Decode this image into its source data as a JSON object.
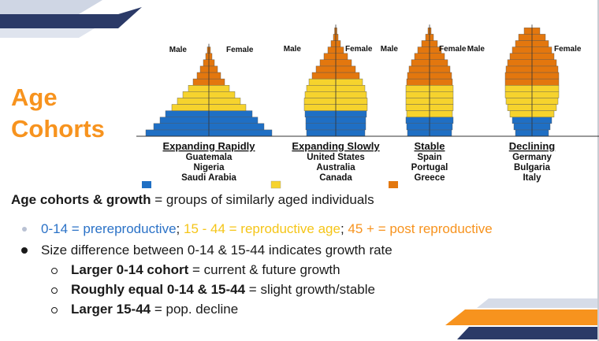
{
  "colors": {
    "prereproductive": "#1f6fc4",
    "reproductive": "#f6d32d",
    "postreproductive": "#e3770e",
    "title": "#f7931e",
    "navy": "#2b3a67"
  },
  "slide": {
    "title_line1": "Age",
    "title_line2": "Cohorts"
  },
  "pyramids": [
    {
      "male_label": "Male",
      "female_label": "Female",
      "heading": "Expanding Rapidly",
      "countries": [
        "Guatemala",
        "Nigeria",
        "Saudi Arabia"
      ]
    },
    {
      "male_label": "Male",
      "female_label": "Female",
      "heading": "Expanding Slowly",
      "countries": [
        "United States",
        "Australia",
        "Canada"
      ]
    },
    {
      "male_label": "Male",
      "female_label": "Female",
      "heading": "Stable",
      "countries": [
        "Spain",
        "Portugal",
        "Greece"
      ]
    },
    {
      "male_label": "Male",
      "female_label": "Female",
      "heading": "Declining",
      "countries": [
        "Germany",
        "Bulgaria",
        "Italy"
      ]
    }
  ],
  "definition": {
    "term": "Age cohorts & growth",
    "rest": " = groups of similarly aged individuals"
  },
  "bullets": {
    "b1_part1": "0-14 = prereproductive",
    "b1_sep1": ";",
    "b1_part2": "15 - 44 = reproductive age",
    "b1_sep2": ";",
    "b1_part3": "45 + = post reproductive",
    "b2": "Size difference between 0-14 & 15-44 indicates growth rate",
    "sub1_bold": "Larger 0-14 cohort",
    "sub1_rest": " = current & future growth",
    "sub2_bold": "Roughly equal 0-14 & 15-44",
    "sub2_rest": " = slight growth/stable",
    "sub3_bold": "Larger 15-44",
    "sub3_rest": " = pop. decline"
  }
}
